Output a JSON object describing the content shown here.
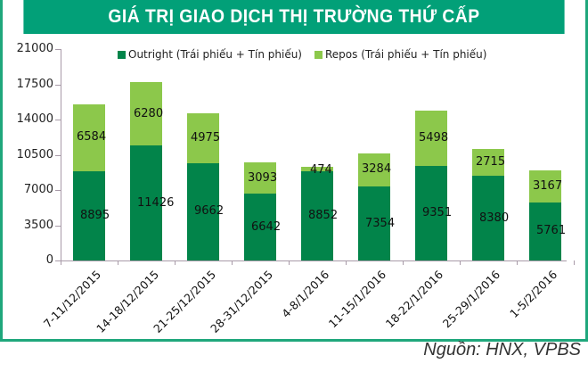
{
  "header": {
    "title": "GIÁ TRỊ GIAO DỊCH THỊ TRƯỜNG THỨ CẤP"
  },
  "legend": {
    "items": [
      {
        "label": "Outright (Trái phiếu + Tín phiếu)",
        "color": "#02844a"
      },
      {
        "label": "Repos (Trái phiếu + Tín phiếu)",
        "color": "#8cc84b"
      }
    ]
  },
  "yaxis": {
    "ticks": [
      "0",
      "3500",
      "7000",
      "10500",
      "14000",
      "17500",
      "21000"
    ]
  },
  "footer": {
    "source": "Nguồn: HNX, VPBS"
  },
  "colors": {
    "header_bg": "#02a078",
    "frame": "#1fa77c",
    "outright": "#02844a",
    "repos": "#8cc84b",
    "axis": "#a89aa8"
  },
  "chart_data": {
    "type": "bar",
    "stacked": true,
    "title": "GIÁ TRỊ GIAO DỊCH THỊ TRƯỜNG THỨ CẤP",
    "xlabel": "",
    "ylabel": "",
    "ylim": [
      0,
      21000
    ],
    "yticks": [
      0,
      3500,
      7000,
      10500,
      14000,
      17500,
      21000
    ],
    "grid": false,
    "legend_position": "top",
    "categories": [
      "7-11/12/2015",
      "14-18/12/2015",
      "21-25/12/2015",
      "28-31/12/2015",
      "4-8/1/2016",
      "11-15/1/2016",
      "18-22/1/2016",
      "25-29/1/2016",
      "1-5/2/2016"
    ],
    "series": [
      {
        "name": "Outright (Trái phiếu + Tín phiếu)",
        "color": "#02844a",
        "values": [
          8895,
          11426,
          9662,
          6642,
          8852,
          7354,
          9351,
          8380,
          5761
        ]
      },
      {
        "name": "Repos (Trái phiếu + Tín phiếu)",
        "color": "#8cc84b",
        "values": [
          6584,
          6280,
          4975,
          3093,
          474,
          3284,
          5498,
          2715,
          3167
        ]
      }
    ],
    "source": "Nguồn: HNX, VPBS"
  }
}
